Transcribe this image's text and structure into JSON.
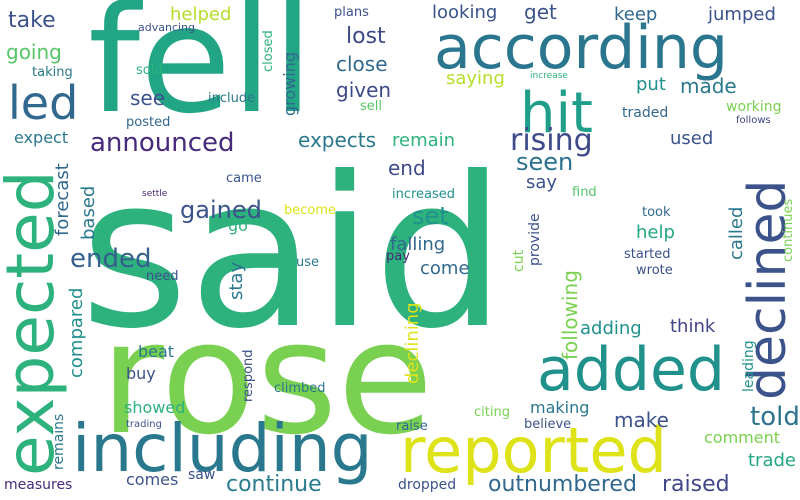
{
  "words": [
    {
      "text": "said",
      "color": "#2db27d",
      "vertical": false
    },
    {
      "text": "rose",
      "color": "#7ad151",
      "vertical": false
    },
    {
      "text": "fell",
      "color": "#21a585",
      "vertical": false
    },
    {
      "text": "according",
      "color": "#2a768e",
      "vertical": false
    },
    {
      "text": "including",
      "color": "#2a788e",
      "vertical": false
    },
    {
      "text": "reported",
      "color": "#dde318",
      "vertical": false
    },
    {
      "text": "expected",
      "color": "#2db27d",
      "vertical": true
    },
    {
      "text": "declined",
      "color": "#3b528b",
      "vertical": true
    },
    {
      "text": "added",
      "color": "#21918c",
      "vertical": false
    },
    {
      "text": "hit",
      "color": "#1f9e89",
      "vertical": false
    },
    {
      "text": "led",
      "color": "#31688e",
      "vertical": false
    },
    {
      "text": "rising",
      "color": "#3e4a89",
      "vertical": false
    },
    {
      "text": "announced",
      "color": "#472a7a",
      "vertical": false
    },
    {
      "text": "ended",
      "color": "#355f8d",
      "vertical": false
    },
    {
      "text": "gained",
      "color": "#3b528b",
      "vertical": false
    },
    {
      "text": "set",
      "color": "#21918c",
      "vertical": false
    },
    {
      "text": "seen",
      "color": "#2c728e",
      "vertical": false
    },
    {
      "text": "told",
      "color": "#2c728e",
      "vertical": false
    },
    {
      "text": "continue",
      "color": "#287c8e",
      "vertical": false
    },
    {
      "text": "outnumbered",
      "color": "#31688e",
      "vertical": false
    },
    {
      "text": "raised",
      "color": "#3f4788",
      "vertical": false
    },
    {
      "text": "take",
      "color": "#3b528b",
      "vertical": false
    },
    {
      "text": "going",
      "color": "#56c667",
      "vertical": false
    },
    {
      "text": "lost",
      "color": "#3e4989",
      "vertical": false
    },
    {
      "text": "close",
      "color": "#31688e",
      "vertical": false
    },
    {
      "text": "given",
      "color": "#3e4a89",
      "vertical": false
    },
    {
      "text": "expects",
      "color": "#2a788e",
      "vertical": false
    },
    {
      "text": "end",
      "color": "#3e4989",
      "vertical": false
    },
    {
      "text": "see",
      "color": "#3b528b",
      "vertical": false
    },
    {
      "text": "made",
      "color": "#2a788e",
      "vertical": false
    },
    {
      "text": "saying",
      "color": "#b5de2b",
      "vertical": false
    },
    {
      "text": "remain",
      "color": "#2db27d",
      "vertical": false
    },
    {
      "text": "looking",
      "color": "#3b528b",
      "vertical": false
    },
    {
      "text": "get",
      "color": "#3b528b",
      "vertical": false
    },
    {
      "text": "keep",
      "color": "#31688e",
      "vertical": false
    },
    {
      "text": "jumped",
      "color": "#3b528b",
      "vertical": false
    },
    {
      "text": "helped",
      "color": "#b5de2b",
      "vertical": false
    },
    {
      "text": "put",
      "color": "#21918c",
      "vertical": false
    },
    {
      "text": "used",
      "color": "#3b528b",
      "vertical": false
    },
    {
      "text": "say",
      "color": "#3b528b",
      "vertical": false
    },
    {
      "text": "come",
      "color": "#31688e",
      "vertical": false
    },
    {
      "text": "falling",
      "color": "#31688e",
      "vertical": false
    },
    {
      "text": "help",
      "color": "#22a884",
      "vertical": false
    },
    {
      "text": "think",
      "color": "#414487",
      "vertical": false
    },
    {
      "text": "adding",
      "color": "#21918c",
      "vertical": false
    },
    {
      "text": "make",
      "color": "#3b528b",
      "vertical": false
    },
    {
      "text": "making",
      "color": "#2a788e",
      "vertical": false
    },
    {
      "text": "trade",
      "color": "#22a884",
      "vertical": false
    },
    {
      "text": "comment",
      "color": "#7ad151",
      "vertical": false
    },
    {
      "text": "beat",
      "color": "#2a788e",
      "vertical": false
    },
    {
      "text": "buy",
      "color": "#3b528b",
      "vertical": false
    },
    {
      "text": "showed",
      "color": "#2db27d",
      "vertical": false
    },
    {
      "text": "comes",
      "color": "#3b528b",
      "vertical": false
    },
    {
      "text": "working",
      "color": "#7ad151",
      "vertical": false
    },
    {
      "text": "traded",
      "color": "#31688e",
      "vertical": false
    },
    {
      "text": "sold",
      "color": "#2db27d",
      "vertical": false
    },
    {
      "text": "taking",
      "color": "#2a788e",
      "vertical": false
    },
    {
      "text": "posted",
      "color": "#31688e",
      "vertical": false
    },
    {
      "text": "expect",
      "color": "#2a788e",
      "vertical": false
    },
    {
      "text": "include",
      "color": "#2a788e",
      "vertical": false
    },
    {
      "text": "sell",
      "color": "#56c667",
      "vertical": false
    },
    {
      "text": "plans",
      "color": "#3b528b",
      "vertical": false
    },
    {
      "text": "advancing",
      "color": "#3b528b",
      "vertical": false
    },
    {
      "text": "increase",
      "color": "#2db27d",
      "vertical": false
    },
    {
      "text": "follows",
      "color": "#414487",
      "vertical": false
    },
    {
      "text": "came",
      "color": "#3b528b",
      "vertical": false
    },
    {
      "text": "become",
      "color": "#dde318",
      "vertical": false
    },
    {
      "text": "increased",
      "color": "#21918c",
      "vertical": false
    },
    {
      "text": "find",
      "color": "#56c667",
      "vertical": false
    },
    {
      "text": "took",
      "color": "#31688e",
      "vertical": false
    },
    {
      "text": "settle",
      "color": "#472a7a",
      "vertical": false
    },
    {
      "text": "go",
      "color": "#2db27d",
      "vertical": false
    },
    {
      "text": "need",
      "color": "#3b528b",
      "vertical": false
    },
    {
      "text": "use",
      "color": "#2a788e",
      "vertical": false
    },
    {
      "text": "pay",
      "color": "#472a7a",
      "vertical": false
    },
    {
      "text": "started",
      "color": "#3b528b",
      "vertical": false
    },
    {
      "text": "wrote",
      "color": "#3b528b",
      "vertical": false
    },
    {
      "text": "climbed",
      "color": "#2a788e",
      "vertical": false
    },
    {
      "text": "citing",
      "color": "#7ad151",
      "vertical": false
    },
    {
      "text": "believe",
      "color": "#3b528b",
      "vertical": false
    },
    {
      "text": "raise",
      "color": "#31688e",
      "vertical": false
    },
    {
      "text": "trading",
      "color": "#3b528b",
      "vertical": false
    },
    {
      "text": "saw",
      "color": "#3b528b",
      "vertical": false
    },
    {
      "text": "measures",
      "color": "#472a7a",
      "vertical": false
    },
    {
      "text": "dropped",
      "color": "#3b528b",
      "vertical": false
    },
    {
      "text": "closed",
      "color": "#2db27d",
      "vertical": true
    },
    {
      "text": "growing",
      "color": "#31688e",
      "vertical": true
    },
    {
      "text": "forecast",
      "color": "#31688e",
      "vertical": true
    },
    {
      "text": "based",
      "color": "#2a788e",
      "vertical": true
    },
    {
      "text": "compared",
      "color": "#21918c",
      "vertical": true
    },
    {
      "text": "stay",
      "color": "#2a788e",
      "vertical": true
    },
    {
      "text": "remains",
      "color": "#2a788e",
      "vertical": true
    },
    {
      "text": "respond",
      "color": "#3b528b",
      "vertical": true
    },
    {
      "text": "declining",
      "color": "#dde318",
      "vertical": true
    },
    {
      "text": "cut",
      "color": "#7ad151",
      "vertical": true
    },
    {
      "text": "provide",
      "color": "#3b528b",
      "vertical": true
    },
    {
      "text": "following",
      "color": "#7ad151",
      "vertical": true
    },
    {
      "text": "called",
      "color": "#2a788e",
      "vertical": true
    },
    {
      "text": "continues",
      "color": "#7ad151",
      "vertical": true
    },
    {
      "text": "leading",
      "color": "#21918c",
      "vertical": true
    }
  ]
}
